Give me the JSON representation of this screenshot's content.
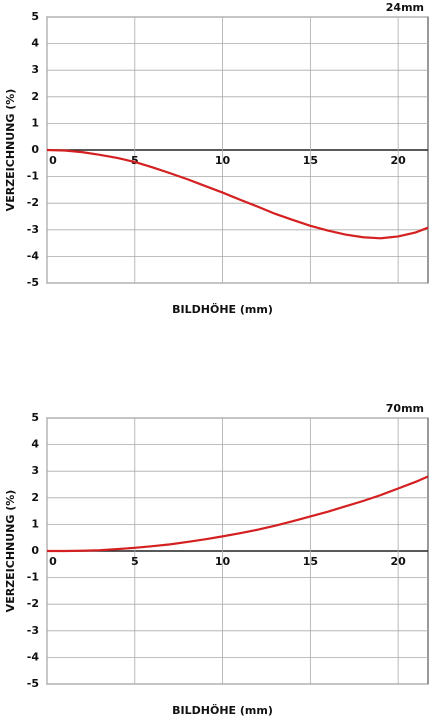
{
  "chart_data": [
    {
      "type": "line",
      "title": "24mm",
      "xlabel": "BILDHÖHE (mm)",
      "ylabel": "VERZEICHNUNG (%)",
      "x": [
        0,
        1,
        2,
        3,
        4,
        5,
        6,
        7,
        8,
        9,
        10,
        11,
        12,
        13,
        14,
        15,
        16,
        17,
        18,
        19,
        20,
        21,
        21.7
      ],
      "values": [
        0,
        -0.02,
        -0.08,
        -0.18,
        -0.3,
        -0.45,
        -0.65,
        -0.87,
        -1.1,
        -1.35,
        -1.6,
        -1.87,
        -2.13,
        -2.4,
        -2.63,
        -2.85,
        -3.03,
        -3.18,
        -3.28,
        -3.32,
        -3.25,
        -3.1,
        -2.92
      ],
      "color": "#d42020",
      "xlim": [
        0,
        21.7
      ],
      "ylim": [
        -5,
        5
      ],
      "xticks": [
        0,
        5,
        10,
        15,
        20
      ],
      "yticks": [
        -5,
        -4,
        -3,
        -2,
        -1,
        0,
        1,
        2,
        3,
        4,
        5
      ],
      "grid": true
    },
    {
      "type": "line",
      "title": "70mm",
      "xlabel": "BILDHÖHE (mm)",
      "ylabel": "VERZEICHNUNG (%)",
      "x": [
        0,
        1,
        2,
        3,
        4,
        5,
        6,
        7,
        8,
        9,
        10,
        11,
        12,
        13,
        14,
        15,
        16,
        17,
        18,
        19,
        20,
        21,
        21.7
      ],
      "values": [
        0,
        0,
        0.01,
        0.03,
        0.07,
        0.12,
        0.18,
        0.25,
        0.34,
        0.44,
        0.55,
        0.67,
        0.8,
        0.95,
        1.12,
        1.3,
        1.48,
        1.68,
        1.88,
        2.1,
        2.35,
        2.6,
        2.8
      ],
      "color": "#d42020",
      "xlim": [
        0,
        21.7
      ],
      "ylim": [
        -5,
        5
      ],
      "xticks": [
        0,
        5,
        10,
        15,
        20
      ],
      "yticks": [
        -5,
        -4,
        -3,
        -2,
        -1,
        0,
        1,
        2,
        3,
        4,
        5
      ],
      "grid": true
    }
  ]
}
